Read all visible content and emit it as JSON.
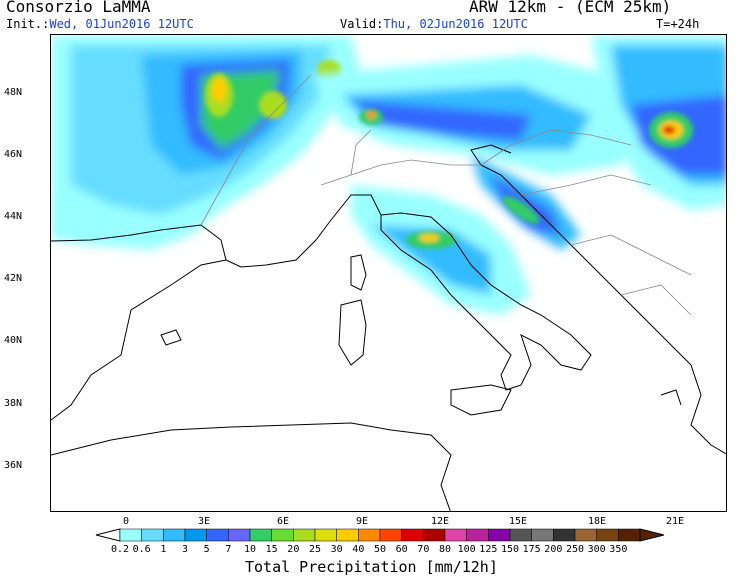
{
  "header": {
    "producer": "Consorzio LaMMA",
    "model": "ARW 12km - (ECM 25km)",
    "init_label": "Init.:",
    "init_value": "Wed, 01Jun2016 12UTC",
    "valid_label": "Valid:",
    "valid_value": "Thu, 02Jun2016 12UTC",
    "lead_time": "T=+24h"
  },
  "axes": {
    "lat_ticks": [
      "48N",
      "46N",
      "44N",
      "42N",
      "40N",
      "38N",
      "36N"
    ],
    "lon_ticks": [
      "0",
      "3E",
      "6E",
      "9E",
      "12E",
      "15E",
      "18E",
      "21E"
    ]
  },
  "colorbar": {
    "title": "Total Precipitation [mm/12h]",
    "labels": [
      "0.2",
      "0.6",
      "1",
      "3",
      "5",
      "7",
      "10",
      "15",
      "20",
      "25",
      "30",
      "40",
      "50",
      "60",
      "70",
      "80",
      "100",
      "125",
      "150",
      "175",
      "200",
      "250",
      "300",
      "350"
    ],
    "colors": [
      "#99ffff",
      "#66ddff",
      "#33bbff",
      "#0099ee",
      "#3366ff",
      "#6666ff",
      "#33cc66",
      "#66dd33",
      "#aadd22",
      "#dddd11",
      "#ffcc00",
      "#ff8800",
      "#ff4400",
      "#dd0000",
      "#aa0000",
      "#dd44aa",
      "#bb2299",
      "#8800aa",
      "#555555",
      "#777777",
      "#333333",
      "#996633",
      "#774411",
      "#552200"
    ]
  },
  "colors": {
    "init_text": "#1a3ee6",
    "valid_text": "#1a3ee6",
    "coastline": "#000000",
    "border": "#888888"
  }
}
